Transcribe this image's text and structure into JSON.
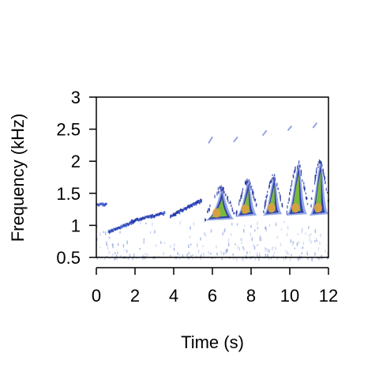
{
  "chart_data": {
    "type": "heatmap",
    "subtype": "spectrogram",
    "title": "",
    "xlabel": "Time (s)",
    "ylabel": "Frequency (kHz)",
    "xlim": [
      0,
      12
    ],
    "ylim": [
      0.5,
      3
    ],
    "x_ticks": [
      0,
      2,
      4,
      6,
      8,
      10,
      12
    ],
    "x_tick_labels": [
      "0",
      "2",
      "4",
      "6",
      "8",
      "10",
      "12"
    ],
    "y_ticks": [
      0.5,
      1,
      1.5,
      2,
      2.5,
      3
    ],
    "y_tick_labels": [
      "0.5",
      "1",
      "1.5",
      "2",
      "2.5",
      "3"
    ],
    "grid": false,
    "colors": {
      "low": "#3a5bd0",
      "mid": "#1f2fa0",
      "high_green": "#7fbf3a",
      "peak_orange": "#e0a040"
    },
    "segments": [
      {
        "t0": 0.0,
        "t1": 0.5,
        "f0": 1.33,
        "f1": 1.33,
        "intensity": 0.35
      },
      {
        "t0": 0.6,
        "t1": 2.0,
        "f0": 0.9,
        "f1": 1.08,
        "intensity": 0.45
      },
      {
        "t0": 1.8,
        "t1": 3.5,
        "f0": 1.07,
        "f1": 1.2,
        "intensity": 0.5
      },
      {
        "t0": 3.8,
        "t1": 5.4,
        "f0": 1.15,
        "f1": 1.4,
        "intensity": 0.65
      }
    ],
    "calls": [
      {
        "t_start": 5.6,
        "t_end": 7.1,
        "f_low": 1.12,
        "f_peak": 1.6,
        "intensity": 0.9
      },
      {
        "t_start": 7.2,
        "t_end": 8.3,
        "f_low": 1.18,
        "f_peak": 1.72,
        "intensity": 1.0
      },
      {
        "t_start": 8.6,
        "t_end": 9.6,
        "f_low": 1.2,
        "f_peak": 1.8,
        "intensity": 1.0
      },
      {
        "t_start": 9.8,
        "t_end": 10.9,
        "f_low": 1.2,
        "f_peak": 1.98,
        "intensity": 1.0
      },
      {
        "t_start": 11.0,
        "t_end": 12.0,
        "f_low": 1.2,
        "f_peak": 2.02,
        "intensity": 1.0
      }
    ],
    "harmonics": [
      {
        "t0": 5.8,
        "t1": 6.0,
        "f0": 2.28,
        "f1": 2.38
      },
      {
        "t0": 7.1,
        "t1": 7.3,
        "f0": 2.3,
        "f1": 2.38
      },
      {
        "t0": 8.6,
        "t1": 8.8,
        "f0": 2.4,
        "f1": 2.48
      },
      {
        "t0": 9.9,
        "t1": 10.1,
        "f0": 2.48,
        "f1": 2.55
      },
      {
        "t0": 11.2,
        "t1": 11.4,
        "f0": 2.52,
        "f1": 2.6
      }
    ]
  }
}
